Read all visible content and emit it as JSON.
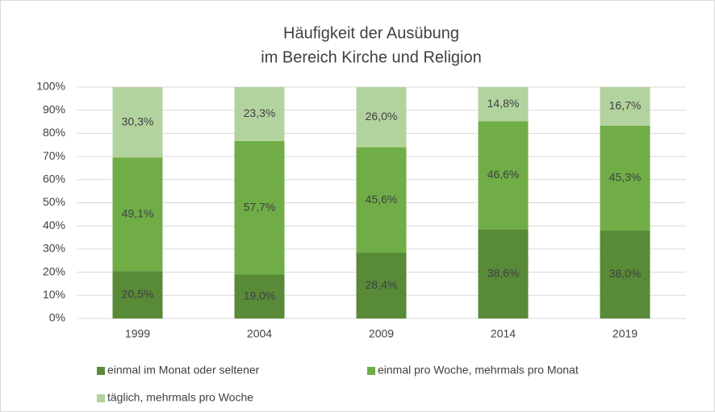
{
  "chart_data": {
    "type": "stacked_bar",
    "title": [
      "Häufigkeit der Ausübung",
      "im Bereich Kirche und Religion"
    ],
    "categories": [
      "1999",
      "2004",
      "2009",
      "2014",
      "2019"
    ],
    "series": [
      {
        "name": "einmal im Monat oder seltener",
        "color": "#588a38",
        "values": [
          20.5,
          19.0,
          28.4,
          38.6,
          38.0
        ],
        "value_labels": [
          "20,5%",
          "19,0%",
          "28,4%",
          "38,6%",
          "38,0%"
        ]
      },
      {
        "name": "einmal pro Woche, mehrmals pro Monat",
        "color": "#70ad47",
        "values": [
          49.1,
          57.7,
          45.6,
          46.6,
          45.3
        ],
        "value_labels": [
          "49,1%",
          "57,7%",
          "45,6%",
          "46,6%",
          "45,3%"
        ]
      },
      {
        "name": "täglich, mehrmals pro Woche",
        "color": "#b3d39e",
        "values": [
          30.3,
          23.3,
          26.0,
          14.8,
          16.7
        ],
        "value_labels": [
          "30,3%",
          "23,3%",
          "26,0%",
          "14,8%",
          "16,7%"
        ]
      }
    ],
    "ylim": [
      0,
      100
    ],
    "yticks": [
      {
        "value": 0,
        "label": "0%"
      },
      {
        "value": 10,
        "label": "10%"
      },
      {
        "value": 20,
        "label": "20%"
      },
      {
        "value": 30,
        "label": "30%"
      },
      {
        "value": 40,
        "label": "40%"
      },
      {
        "value": 50,
        "label": "50%"
      },
      {
        "value": 60,
        "label": "60%"
      },
      {
        "value": 70,
        "label": "70%"
      },
      {
        "value": 80,
        "label": "80%"
      },
      {
        "value": 90,
        "label": "90%"
      },
      {
        "value": 100,
        "label": "100%"
      }
    ],
    "grid": true,
    "legend": "bottom"
  }
}
